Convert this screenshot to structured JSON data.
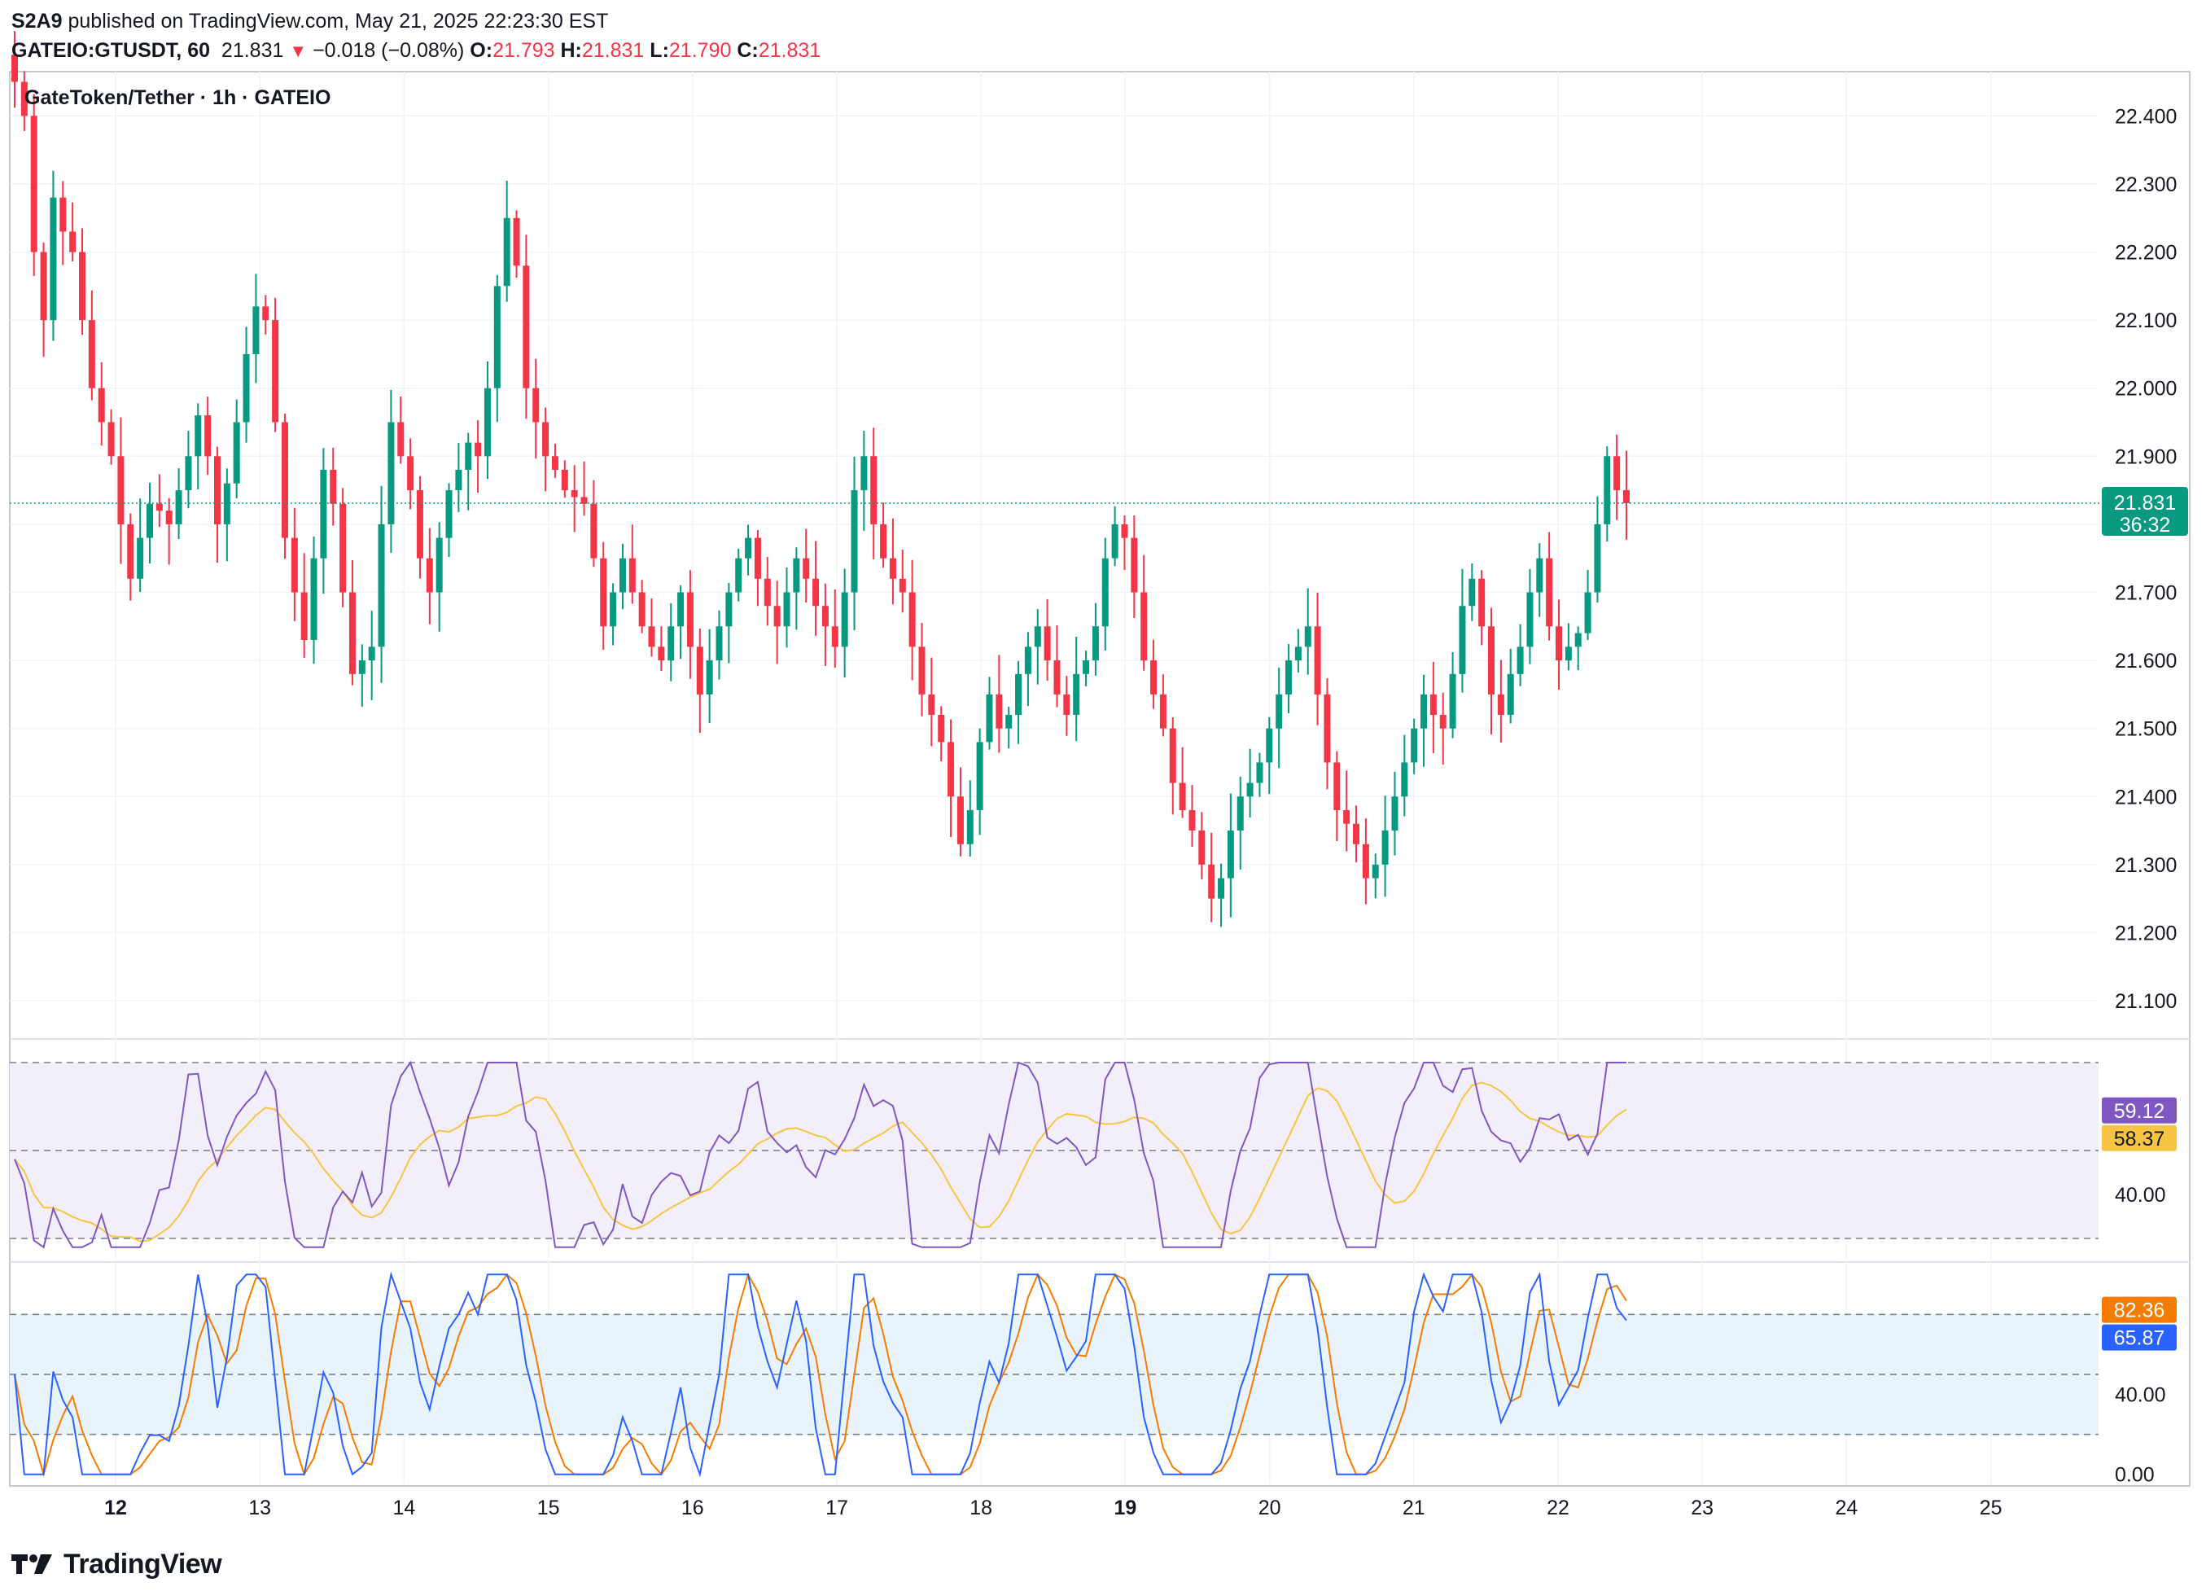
{
  "header": {
    "publisher": "S2A9",
    "published_text": " published on TradingView.com, May 21, 2025 22:23:30 EST",
    "symbol": "GATEIO:GTUSDT, 60",
    "last": "21.831",
    "change": "−0.018 (−0.08%)",
    "o_label": "O:",
    "o_val": "21.793",
    "h_label": "H:",
    "h_val": "21.831",
    "l_label": "L:",
    "l_val": "21.790",
    "c_label": "C:",
    "c_val": "21.831"
  },
  "legend_title": "GateToken/Tether · 1h · GATEIO",
  "footer": {
    "brand": "TradingView",
    "logo_icon": "tradingview-logo-icon"
  },
  "colors": {
    "up": "#089981",
    "down": "#f23645",
    "rsi": "#7e57c2",
    "rsi_ma": "#f7c543",
    "stoch_k": "#2962ff",
    "stoch_d": "#f57c00",
    "price_line": "#089981"
  },
  "chart_data": [
    {
      "type": "candlestick",
      "price_axis": [
        "22.400",
        "22.300",
        "22.200",
        "22.100",
        "22.000",
        "21.900",
        "21.800",
        "21.700",
        "21.600",
        "21.500",
        "21.400",
        "21.300",
        "21.200",
        "21.100"
      ],
      "ylim": [
        21.045,
        22.465
      ],
      "x_ticks": [
        "12",
        "13",
        "14",
        "15",
        "16",
        "17",
        "18",
        "19",
        "20",
        "21",
        "22",
        "23",
        "24",
        "25"
      ],
      "bold_ticks": [
        "12",
        "19"
      ],
      "last_price": "21.831",
      "countdown": "36:32",
      "grid": true,
      "closes": [
        22.45,
        22.4,
        22.2,
        22.1,
        22.28,
        22.23,
        22.2,
        22.1,
        22.0,
        21.95,
        21.9,
        21.8,
        21.72,
        21.78,
        21.83,
        21.82,
        21.8,
        21.85,
        21.9,
        21.96,
        21.9,
        21.8,
        21.86,
        21.95,
        22.05,
        22.12,
        22.1,
        21.95,
        21.78,
        21.7,
        21.63,
        21.75,
        21.88,
        21.83,
        21.7,
        21.58,
        21.6,
        21.62,
        21.8,
        21.95,
        21.9,
        21.85,
        21.75,
        21.7,
        21.78,
        21.85,
        21.88,
        21.92,
        21.9,
        22.0,
        22.15,
        22.25,
        22.18,
        22.0,
        21.95,
        21.9,
        21.88,
        21.85,
        21.84,
        21.83,
        21.75,
        21.65,
        21.7,
        21.75,
        21.7,
        21.65,
        21.62,
        21.6,
        21.65,
        21.7,
        21.62,
        21.55,
        21.6,
        21.65,
        21.7,
        21.75,
        21.78,
        21.72,
        21.68,
        21.65,
        21.7,
        21.75,
        21.72,
        21.68,
        21.65,
        21.62,
        21.7,
        21.85,
        21.9,
        21.8,
        21.75,
        21.72,
        21.7,
        21.62,
        21.55,
        21.52,
        21.48,
        21.4,
        21.33,
        21.38,
        21.48,
        21.55,
        21.5,
        21.52,
        21.58,
        21.62,
        21.65,
        21.6,
        21.55,
        21.52,
        21.58,
        21.6,
        21.65,
        21.75,
        21.8,
        21.78,
        21.7,
        21.6,
        21.55,
        21.5,
        21.42,
        21.38,
        21.35,
        21.3,
        21.25,
        21.28,
        21.35,
        21.4,
        21.42,
        21.45,
        21.5,
        21.55,
        21.6,
        21.62,
        21.65,
        21.55,
        21.45,
        21.38,
        21.36,
        21.33,
        21.28,
        21.3,
        21.35,
        21.4,
        21.45,
        21.5,
        21.55,
        21.52,
        21.5,
        21.58,
        21.68,
        21.72,
        21.65,
        21.55,
        21.52,
        21.58,
        21.62,
        21.7,
        21.75,
        21.65,
        21.6,
        21.62,
        21.64,
        21.7,
        21.8,
        21.9,
        21.85,
        21.831
      ],
      "notes": "closes are approximate readings of candle closes off the price axis"
    },
    {
      "type": "line",
      "name_hidden": "RSI",
      "axis": [
        "40.00"
      ],
      "badges": [
        "59.12",
        "58.37"
      ],
      "bands": [
        70,
        50,
        30
      ],
      "ylim": [
        25,
        75
      ]
    },
    {
      "type": "line",
      "name_hidden": "Stochastic",
      "axis": [
        "40.00",
        "0.00"
      ],
      "badges": [
        "82.36",
        "65.87"
      ],
      "bands": [
        80,
        50,
        20
      ],
      "ylim": [
        -5,
        105
      ]
    }
  ]
}
